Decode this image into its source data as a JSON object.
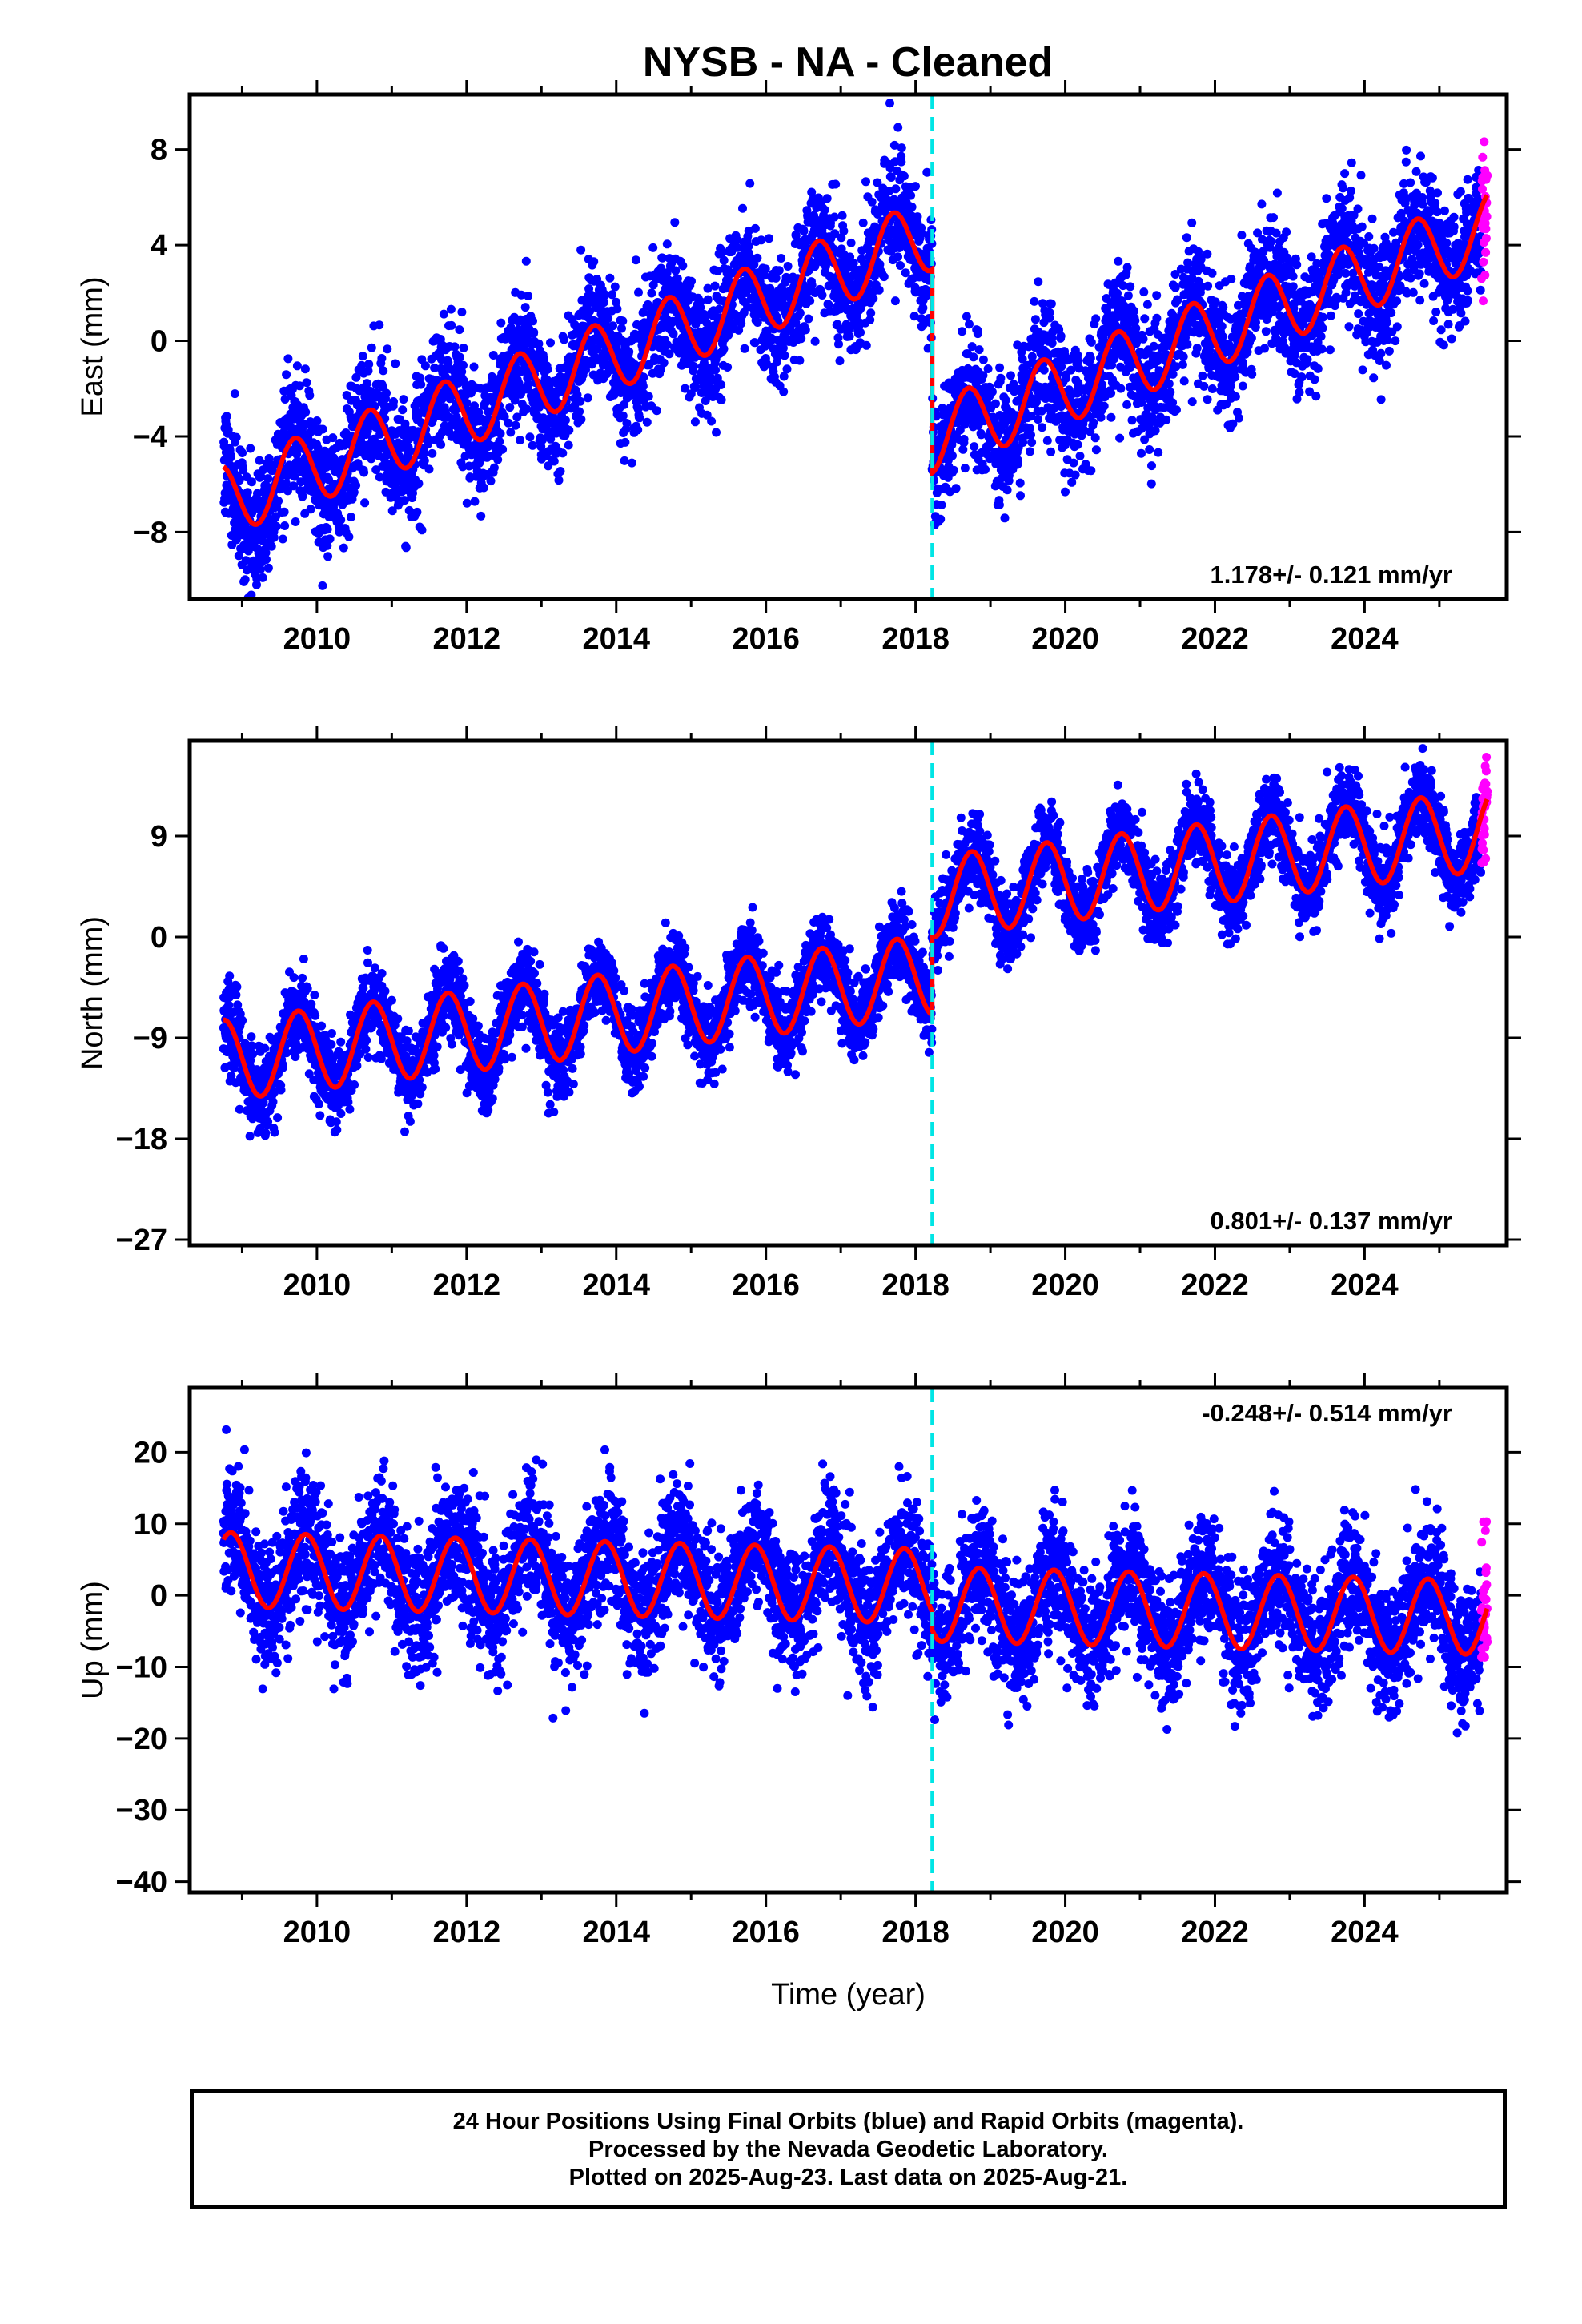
{
  "title": "NYSB  - NA - Cleaned",
  "colors": {
    "final_orbits": "#0000ff",
    "rapid_orbits": "#ff00ff",
    "model": "#ff0000",
    "offset_line": "#00e5e5"
  },
  "footer": {
    "line1": "24 Hour Positions Using Final Orbits (blue) and Rapid Orbits (magenta).",
    "line2": "Processed by the Nevada Geodetic Laboratory.",
    "line3": "Plotted on 2025-Aug-23. Last data on 2025-Aug-21."
  },
  "chart_data": [
    {
      "type": "scatter",
      "name": "east",
      "ylabel": "East (mm)",
      "xlabel": "",
      "xlim": [
        2008.3,
        2025.9
      ],
      "ylim": [
        -10.8,
        10.3
      ],
      "x_ticks": [
        2010,
        2012,
        2014,
        2016,
        2018,
        2020,
        2022,
        2024
      ],
      "y_ticks": [
        -8,
        -4,
        0,
        4,
        8
      ],
      "rate_label": "1.178+/- 0.121 mm/yr",
      "rate_position": "bottom-right",
      "data_start": 2008.75,
      "data_end": 2025.64,
      "rapid_start": 2025.56,
      "offset_epoch": 2018.22,
      "model": {
        "rate": 1.178,
        "intercept": -6.7,
        "offset": -8.5,
        "annual_amp": 1.5,
        "annual_phase": 2009.45
      },
      "noise": 1.3
    },
    {
      "type": "scatter",
      "name": "north",
      "ylabel": "North (mm)",
      "xlabel": "",
      "xlim": [
        2008.3,
        2025.9
      ],
      "ylim": [
        -27.5,
        17.5
      ],
      "x_ticks": [
        2010,
        2012,
        2014,
        2016,
        2018,
        2020,
        2022,
        2024
      ],
      "y_ticks": [
        -27,
        -18,
        -9,
        0,
        9
      ],
      "rate_label": "0.801+/- 0.137 mm/yr",
      "rate_position": "bottom-right",
      "data_start": 2008.75,
      "data_end": 2025.64,
      "rapid_start": 2025.56,
      "offset_epoch": 2018.22,
      "model": {
        "rate": 0.801,
        "intercept": -11.0,
        "offset": 7.0,
        "annual_amp": 3.6,
        "annual_phase": 2009.5
      },
      "noise": 1.8
    },
    {
      "type": "scatter",
      "name": "up",
      "ylabel": "Up (mm)",
      "xlabel": "Time (year)",
      "xlim": [
        2008.3,
        2025.9
      ],
      "ylim": [
        -41.5,
        29.0
      ],
      "x_ticks": [
        2010,
        2012,
        2014,
        2016,
        2018,
        2020,
        2022,
        2024
      ],
      "y_ticks": [
        -40,
        -30,
        -20,
        -10,
        0,
        10,
        20
      ],
      "rate_label": "-0.248+/- 0.514 mm/yr",
      "rate_position": "top-right",
      "data_start": 2008.75,
      "data_end": 2025.64,
      "rapid_start": 2025.56,
      "offset_epoch": 2018.22,
      "model": {
        "rate": -0.248,
        "intercept": 3.6,
        "offset": -2.5,
        "annual_amp": 5.2,
        "annual_phase": 2008.6
      },
      "noise": 4.5
    }
  ]
}
